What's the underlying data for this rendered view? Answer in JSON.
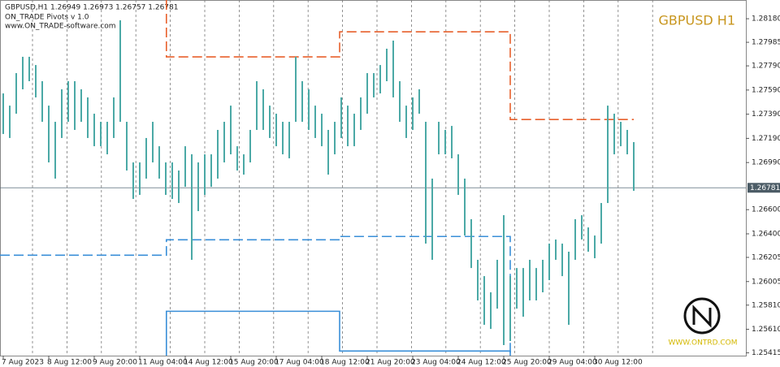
{
  "chart_data": {
    "type": "hilo",
    "header": "GBPUSD,H1  1.26949 1.26973 1.26757 1.26781",
    "indicator": "ON_TRADE Pivots v 1.0",
    "website": "www.ON_TRADE-software.com",
    "title": "GBPUSD H1",
    "watermark": "WWW.ONTRD.COM",
    "color": "#4ba9a6",
    "current_price": 1.26781,
    "xlim": [
      -0.5,
      114.25
    ],
    "ylim": [
      1.25392,
      1.28335
    ],
    "xticks": [
      {
        "value": 0,
        "label": "7 Aug 2023"
      },
      {
        "value": 7,
        "label": "8 Aug 12:00"
      },
      {
        "value": 14,
        "label": "9 Aug 20:00"
      },
      {
        "value": 21,
        "label": "11 Aug 04:00"
      },
      {
        "value": 28,
        "label": "14 Aug 12:00"
      },
      {
        "value": 35,
        "label": "15 Aug 20:00"
      },
      {
        "value": 42,
        "label": "17 Aug 04:00"
      },
      {
        "value": 49,
        "label": "18 Aug 12:00"
      },
      {
        "value": 56,
        "label": "21 Aug 20:00"
      },
      {
        "value": 63,
        "label": "23 Aug 04:00"
      },
      {
        "value": 70,
        "label": "24 Aug 12:00"
      },
      {
        "value": 77,
        "label": "25 Aug 20:00"
      },
      {
        "value": 84,
        "label": "29 Aug 04:00"
      },
      {
        "value": 91,
        "label": "30 Aug 12:00"
      }
    ],
    "yticks": [
      {
        "value": 1.2818,
        "label": "1.28180"
      },
      {
        "value": 1.27985,
        "label": "1.27985"
      },
      {
        "value": 1.2779,
        "label": "1.27790"
      },
      {
        "value": 1.2759,
        "label": "1.27590"
      },
      {
        "value": 1.2739,
        "label": "1.27390"
      },
      {
        "value": 1.2719,
        "label": "1.27190"
      },
      {
        "value": 1.2699,
        "label": "1.26990"
      },
      {
        "value": 1.266,
        "label": "1.26600"
      },
      {
        "value": 1.264,
        "label": "1.26400"
      },
      {
        "value": 1.26205,
        "label": "1.26205"
      },
      {
        "value": 1.26005,
        "label": "1.26005"
      },
      {
        "value": 1.2581,
        "label": "1.25810"
      },
      {
        "value": 1.2561,
        "label": "1.25610"
      },
      {
        "value": 1.25415,
        "label": "1.25415"
      }
    ],
    "bars": {
      "high": [
        1.27562,
        1.27461,
        1.2773,
        1.27865,
        1.27865,
        1.27797,
        1.27663,
        1.27461,
        1.27327,
        1.27596,
        1.27663,
        1.27663,
        1.27596,
        1.27529,
        1.27394,
        1.27327,
        1.27327,
        1.27529,
        1.28167,
        1.27327,
        1.26991,
        1.26991,
        1.27193,
        1.27327,
        1.27125,
        1.26991,
        1.26991,
        1.26924,
        1.27125,
        1.27058,
        1.26991,
        1.27058,
        1.27058,
        1.2726,
        1.27327,
        1.27461,
        1.27125,
        1.27058,
        1.2726,
        1.27663,
        1.27596,
        1.27461,
        1.27394,
        1.27327,
        1.27327,
        1.27865,
        1.27663,
        1.27596,
        1.27461,
        1.27394,
        1.2726,
        1.27327,
        1.27529,
        1.27461,
        1.27394,
        1.27529,
        1.2773,
        1.2773,
        1.27797,
        1.27932,
        1.27999,
        1.27663,
        1.27461,
        1.27529,
        1.27596,
        1.27327,
        1.26857,
        1.27327,
        1.2726,
        1.27293,
        1.27058,
        1.26857,
        1.26521,
        1.26185,
        1.2605,
        1.25916,
        1.26185,
        1.26554,
        1.2605,
        1.26117,
        1.26117,
        1.26185,
        1.26117,
        1.26185,
        1.26319,
        1.26353,
        1.26319,
        1.26252,
        1.26521,
        1.26554,
        1.26453,
        1.26386,
        1.26655,
        1.27461,
        1.27394,
        1.27327,
        1.2726,
        1.27159
      ],
      "low": [
        1.27226,
        1.27193,
        1.27394,
        1.27596,
        1.27663,
        1.27529,
        1.27327,
        1.26991,
        1.26857,
        1.27193,
        1.27327,
        1.2726,
        1.27327,
        1.27193,
        1.27125,
        1.27125,
        1.27058,
        1.27193,
        1.27327,
        1.26924,
        1.26689,
        1.26722,
        1.26857,
        1.26991,
        1.26857,
        1.26722,
        1.26689,
        1.26655,
        1.26789,
        1.26185,
        1.26588,
        1.26722,
        1.26789,
        1.26857,
        1.26991,
        1.27058,
        1.26924,
        1.2689,
        1.26991,
        1.2726,
        1.2726,
        1.27193,
        1.27125,
        1.27058,
        1.27025,
        1.27327,
        1.27327,
        1.2726,
        1.27193,
        1.27125,
        1.2689,
        1.27058,
        1.27193,
        1.27125,
        1.27125,
        1.2726,
        1.27394,
        1.27529,
        1.27562,
        1.27663,
        1.27529,
        1.27327,
        1.27193,
        1.2726,
        1.27394,
        1.26319,
        1.26185,
        1.27058,
        1.27058,
        1.27025,
        1.26722,
        1.26386,
        1.26117,
        1.25849,
        1.25647,
        1.25613,
        1.25781,
        1.25479,
        1.25513,
        1.25781,
        1.25714,
        1.25849,
        1.25849,
        1.25916,
        1.26017,
        1.26185,
        1.2605,
        1.25647,
        1.26185,
        1.26353,
        1.26252,
        1.26198,
        1.26319,
        1.26655,
        1.27058,
        1.27125,
        1.27058,
        1.26756
      ]
    },
    "pivots": [
      {
        "color": "#e8602c",
        "dashed": true,
        "x": [
          25.1,
          25.1,
          51.75,
          51.75,
          78,
          78,
          97
        ],
        "values": [
          1.28335,
          1.27864,
          1.27864,
          1.28072,
          1.28072,
          1.27346,
          1.27346
        ]
      },
      {
        "color": "#3a8fd8",
        "dashed": true,
        "x": [
          -0.5,
          25.1,
          25.1,
          51.75,
          51.75,
          78,
          78
        ],
        "values": [
          1.26223,
          1.26223,
          1.26351,
          1.26351,
          1.26378,
          1.26378,
          1.25392
        ]
      },
      {
        "color": "#3a8fd8",
        "dashed": false,
        "x": [
          25.1,
          25.1,
          51.75,
          51.75,
          78,
          78
        ],
        "values": [
          1.25392,
          1.25759,
          1.25759,
          1.2543,
          1.2543,
          1.25392
        ]
      }
    ]
  }
}
